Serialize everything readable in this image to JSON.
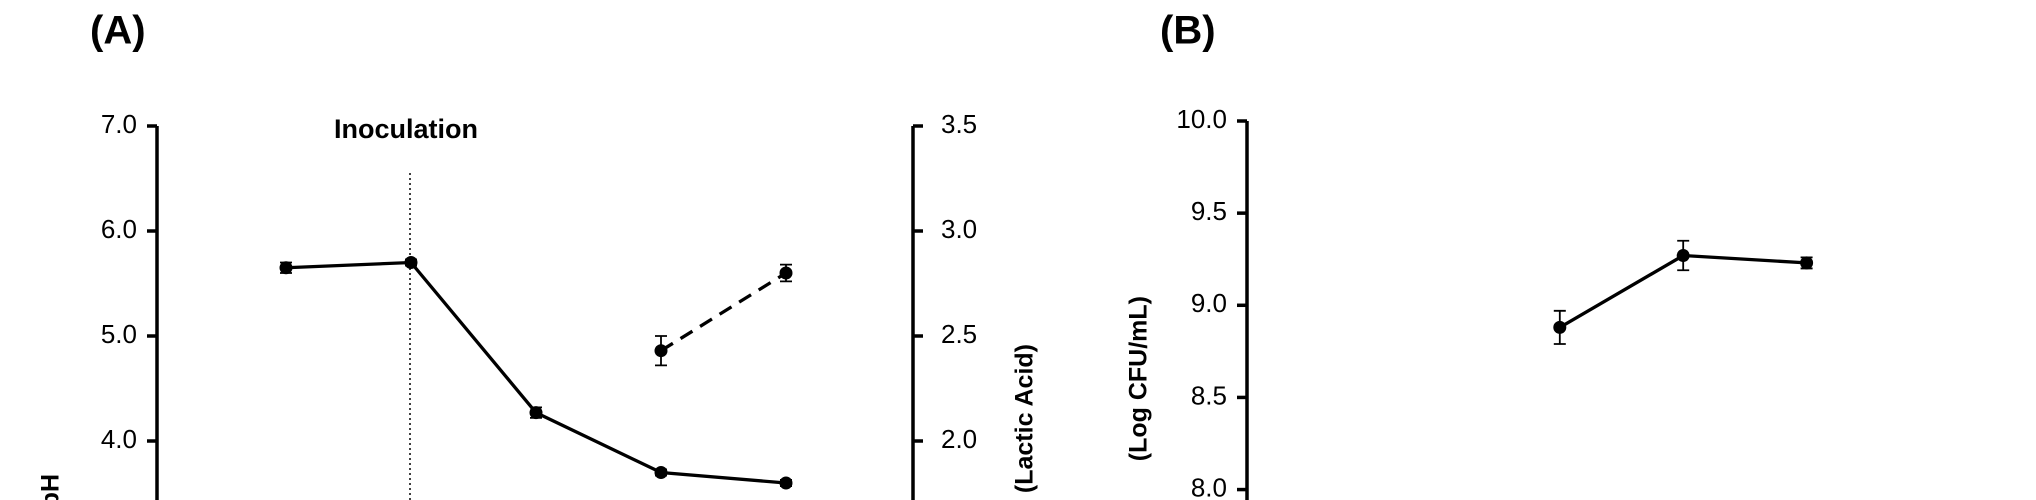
{
  "chart_data": [
    {
      "type": "line",
      "panel_label": "(A)",
      "annotation": "Inoculation",
      "categories": [
        null,
        null,
        null,
        null,
        null
      ],
      "ylabel": "pH",
      "y2label": "(Lactic Acid)",
      "ylim": [
        3.4,
        7.0
      ],
      "yticks": [
        {
          "value": 4,
          "label": "4.0"
        },
        {
          "value": 5,
          "label": "5.0"
        },
        {
          "value": 6,
          "label": "6.0"
        },
        {
          "value": 7,
          "label": "7.0"
        }
      ],
      "y2lim": [
        1.7,
        3.5
      ],
      "y2ticks": [
        {
          "value": 2,
          "label": "2.0"
        },
        2.5,
        {
          "value": 3,
          "label": "3.0"
        },
        3.5
      ],
      "series": [
        {
          "color": "#000000",
          "dash": false,
          "values": [
            5.65,
            5.7,
            4.27,
            3.7,
            3.6
          ],
          "errors": [
            0.05,
            0.03,
            0.05,
            0.03,
            0.03
          ]
        },
        {
          "color": "#000000",
          "dash": true,
          "axis": "y2",
          "values": [
            null,
            null,
            null,
            2.43,
            2.8
          ],
          "errors": [
            null,
            null,
            null,
            0.07,
            0.04
          ]
        }
      ]
    },
    {
      "type": "line",
      "panel_label": "(B)",
      "categories": [
        null,
        null,
        null,
        null,
        null
      ],
      "ylabel": "(Log CFU/mL)",
      "ylim": [
        7.9,
        10.0
      ],
      "yticks": [
        {
          "value": 8,
          "label": "8.0"
        },
        8.5,
        {
          "value": 9,
          "label": "9.0"
        },
        9.5,
        {
          "value": 10,
          "label": "10.0"
        }
      ],
      "series": [
        {
          "color": "#000000",
          "dash": false,
          "values": [
            null,
            null,
            8.88,
            9.27,
            9.23
          ],
          "errors": [
            null,
            null,
            0.09,
            0.08,
            0.03
          ]
        }
      ]
    }
  ]
}
